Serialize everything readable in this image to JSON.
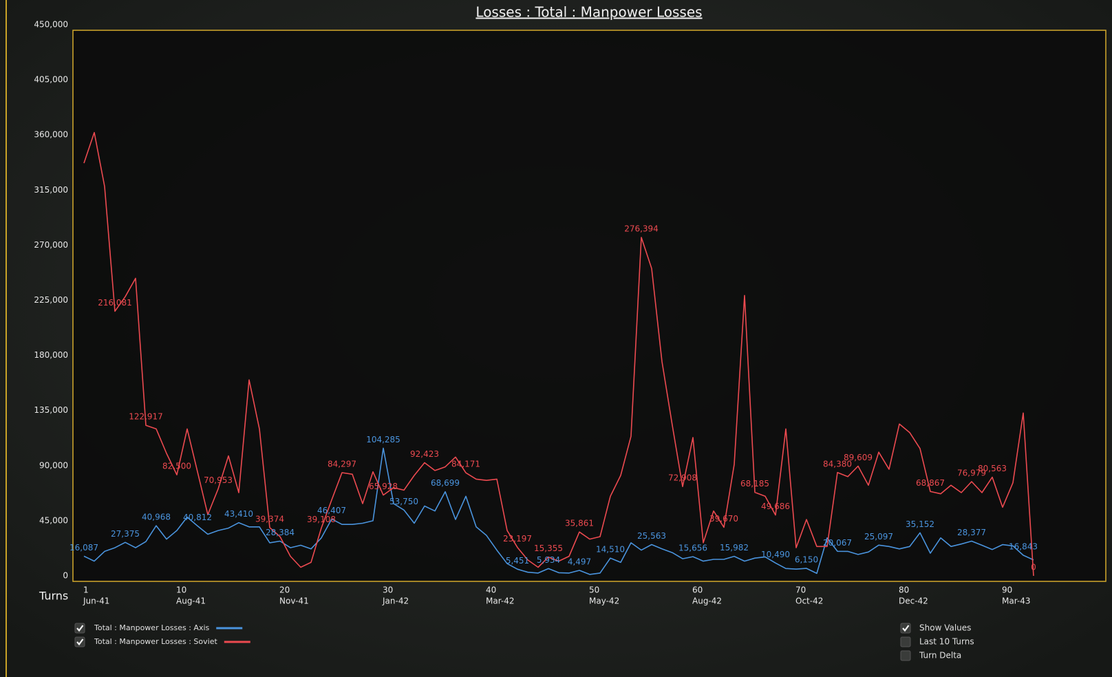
{
  "chart_data": {
    "type": "line",
    "title": "Losses : Total : Manpower Losses",
    "xlabel": "Turns",
    "x": [
      1,
      2,
      3,
      4,
      5,
      6,
      7,
      8,
      9,
      10,
      11,
      12,
      13,
      14,
      15,
      16,
      17,
      18,
      19,
      20,
      21,
      22,
      23,
      24,
      25,
      26,
      27,
      28,
      29,
      30,
      31,
      32,
      33,
      34,
      35,
      36,
      37,
      38,
      39,
      40,
      41,
      42,
      43,
      44,
      45,
      46,
      47,
      48,
      49,
      50,
      51,
      52,
      53,
      54,
      55,
      56,
      57,
      58,
      59,
      60,
      61,
      62,
      63,
      64,
      65,
      66,
      67,
      68,
      69,
      70,
      71,
      72,
      73,
      74,
      75,
      76,
      77,
      78,
      79,
      80,
      81,
      82,
      83,
      84,
      85,
      86,
      87,
      88,
      89,
      90,
      91,
      92,
      93
    ],
    "xlim": [
      0,
      100
    ],
    "xticks": [
      1,
      10,
      20,
      30,
      40,
      50,
      60,
      70,
      80,
      90
    ],
    "xtick_dates": [
      "Jun-41",
      "Aug-41",
      "Nov-41",
      "Jan-42",
      "Mar-42",
      "May-42",
      "Aug-42",
      "Oct-42",
      "Dec-42",
      "Mar-43"
    ],
    "ylim": [
      0,
      450000
    ],
    "yticks": [
      0,
      {
        "value": 45000,
        "label": "45,000"
      },
      {
        "value": 90000,
        "label": "90,000"
      },
      {
        "value": 135000,
        "label": "135,000"
      },
      {
        "value": 180000,
        "label": "180,000"
      },
      {
        "value": 225000,
        "label": "225,000"
      },
      {
        "value": 270000,
        "label": "270,000"
      },
      {
        "value": 315000,
        "label": "315,000"
      },
      {
        "value": 360000,
        "label": "360,000"
      },
      {
        "value": 405000,
        "label": "405,000"
      },
      {
        "value": 450000,
        "label": "450,000"
      }
    ],
    "series": [
      {
        "name": "Total : Manpower Losses : Axis",
        "color": "#4a94de",
        "values": [
          16087,
          12000,
          20000,
          23000,
          27375,
          23000,
          28000,
          40968,
          30000,
          37000,
          48000,
          40812,
          34000,
          37000,
          39000,
          43410,
          40000,
          40000,
          27000,
          28384,
          23000,
          25000,
          22000,
          31000,
          46407,
          42000,
          42000,
          43000,
          45000,
          104285,
          59000,
          53750,
          43000,
          57000,
          53000,
          68699,
          46000,
          65000,
          40000,
          33000,
          21000,
          10000,
          5451,
          3000,
          2300,
          5934,
          2600,
          2300,
          4497,
          1200,
          2300,
          14510,
          11000,
          27000,
          21000,
          25563,
          22000,
          19000,
          14000,
          15656,
          12000,
          13500,
          13500,
          15982,
          12000,
          14500,
          15500,
          10490,
          6000,
          5500,
          6150,
          2000,
          31000,
          20067,
          20000,
          17500,
          19500,
          25097,
          24000,
          22000,
          24000,
          35152,
          18500,
          31000,
          24000,
          26000,
          28377,
          25000,
          21500,
          25500,
          24500,
          16843,
          13000
        ],
        "value_labels": [
          "16,087",
          null,
          null,
          null,
          "27,375",
          null,
          null,
          "40,968",
          null,
          null,
          null,
          "40,812",
          null,
          null,
          null,
          "43,410",
          null,
          null,
          null,
          "28,384",
          null,
          null,
          null,
          null,
          "46,407",
          null,
          null,
          null,
          null,
          "104,285",
          null,
          "53,750",
          null,
          null,
          null,
          "68,699",
          null,
          null,
          null,
          null,
          null,
          null,
          "5,451",
          null,
          null,
          "5,934",
          null,
          null,
          "4,497",
          null,
          null,
          "14,510",
          null,
          null,
          null,
          "25,563",
          null,
          null,
          null,
          "15,656",
          null,
          null,
          null,
          "15,982",
          null,
          null,
          null,
          "10,490",
          null,
          null,
          "6,150",
          null,
          null,
          "20,067",
          null,
          null,
          null,
          "25,097",
          null,
          null,
          null,
          "35,152",
          null,
          null,
          null,
          null,
          "28,377",
          null,
          null,
          null,
          null,
          "16,843",
          null
        ]
      },
      {
        "name": "Total : Manpower Losses : Soviet",
        "color": "#ec4a50",
        "values": [
          337000,
          362000,
          318000,
          216081,
          228000,
          243000,
          122917,
          120000,
          100000,
          82500,
          120000,
          85000,
          50000,
          70953,
          98000,
          68000,
          160000,
          120000,
          39374,
          32000,
          16000,
          7000,
          11000,
          39108,
          62000,
          84297,
          83000,
          59000,
          85000,
          65928,
          72000,
          70000,
          82000,
          92423,
          86000,
          89000,
          97000,
          84171,
          79000,
          78000,
          79000,
          37000,
          23197,
          13000,
          7000,
          15355,
          12000,
          16000,
          35861,
          30000,
          32000,
          65000,
          82000,
          114000,
          276394,
          251000,
          175000,
          123000,
          72908,
          113000,
          27000,
          53000,
          39670,
          91000,
          229000,
          68185,
          65000,
          49686,
          120000,
          23000,
          46000,
          24000,
          24000,
          84380,
          81000,
          89609,
          74000,
          101000,
          87000,
          124000,
          117000,
          104000,
          68867,
          67000,
          74000,
          68000,
          76979,
          68000,
          80563,
          56000,
          76000,
          133000,
          0
        ],
        "value_labels": [
          null,
          null,
          null,
          "216,081",
          null,
          null,
          "122,917",
          null,
          null,
          "82,500",
          null,
          null,
          null,
          "70,953",
          null,
          null,
          null,
          null,
          "39,374",
          null,
          null,
          null,
          null,
          "39,108",
          null,
          "84,297",
          null,
          null,
          null,
          "65,928",
          null,
          null,
          null,
          "92,423",
          null,
          null,
          null,
          "84,171",
          null,
          null,
          null,
          null,
          "23,197",
          null,
          null,
          "15,355",
          null,
          null,
          "35,861",
          null,
          null,
          null,
          null,
          null,
          "276,394",
          null,
          null,
          null,
          "72,908",
          null,
          null,
          null,
          "39,670",
          null,
          null,
          "68,185",
          null,
          "49,686",
          null,
          null,
          null,
          null,
          null,
          "84,380",
          null,
          "89,609",
          null,
          null,
          null,
          null,
          null,
          null,
          "68,867",
          null,
          null,
          null,
          "76,979",
          null,
          "80,563",
          null,
          null,
          null,
          "0"
        ]
      }
    ],
    "controls": [
      {
        "label": "Show Values",
        "checked": true
      },
      {
        "label": "Last 10 Turns",
        "checked": false
      },
      {
        "label": "Turn Delta",
        "checked": false
      }
    ]
  }
}
